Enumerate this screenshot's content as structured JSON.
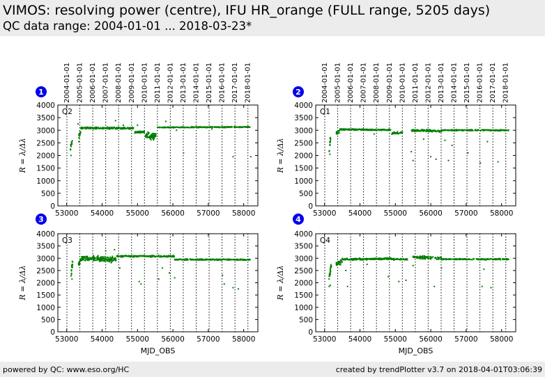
{
  "header": {
    "title": "VIMOS: resolving power (centre), IFU HR_orange (FULL range, 5205 days)",
    "subtitle": "QC data range: 2004-01-01 ... 2018-03-23*"
  },
  "footer": {
    "left": "powered by QC: www.eso.org/HC",
    "right": "created by trendPlotter v3.7 on 2018-04-01T03:06:39"
  },
  "colors": {
    "points": "#007f00",
    "badge": "#0000ee",
    "header_bg": "#ececec"
  },
  "chart_data": [
    {
      "type": "scatter",
      "badge": "1",
      "quadrant_label": "Q2",
      "xlabel": "",
      "ylabel": "R = λ/Δλ",
      "xlim": [
        52750,
        58400
      ],
      "ylim": [
        0,
        4000
      ],
      "x_ticks": [
        "53000",
        "54000",
        "55000",
        "56000",
        "57000",
        "58000"
      ],
      "y_ticks": [
        "0",
        "500",
        "1000",
        "1500",
        "2000",
        "2500",
        "3000",
        "3500",
        "4000"
      ],
      "date_ticks": [
        "2004-01-01",
        "2005-01-01",
        "2006-01-01",
        "2007-01-01",
        "2008-01-01",
        "2009-01-01",
        "2010-01-01",
        "2011-01-01",
        "2012-01-01",
        "2013-01-01",
        "2014-01-01",
        "2015-01-01",
        "2016-01-01",
        "2017-01-01",
        "2018-01-01"
      ],
      "date_mjd": [
        53005,
        53371,
        53736,
        54101,
        54466,
        54832,
        55197,
        55562,
        55927,
        56293,
        56658,
        57023,
        57388,
        57754,
        58119
      ],
      "segments": [
        {
          "x0": 53100,
          "x1": 53160,
          "y0": 2200,
          "y1": 2600,
          "spread": 200,
          "n": 12
        },
        {
          "x0": 53330,
          "x1": 53400,
          "y0": 2700,
          "y1": 2950,
          "spread": 150,
          "n": 14
        },
        {
          "x0": 53400,
          "x1": 54900,
          "y0": 3090,
          "y1": 3080,
          "spread": 50,
          "n": 220
        },
        {
          "x0": 54900,
          "x1": 55200,
          "y0": 2920,
          "y1": 2940,
          "spread": 60,
          "n": 40
        },
        {
          "x0": 55220,
          "x1": 55520,
          "y0": 2800,
          "y1": 2750,
          "spread": 180,
          "n": 80
        },
        {
          "x0": 55560,
          "x1": 58200,
          "y0": 3110,
          "y1": 3130,
          "spread": 25,
          "n": 260
        }
      ],
      "outliers": [
        [
          53320,
          3250
        ],
        [
          54380,
          3380
        ],
        [
          54600,
          3200
        ],
        [
          55000,
          3200
        ],
        [
          55800,
          3350
        ],
        [
          56300,
          2100
        ],
        [
          57700,
          1950
        ],
        [
          58200,
          1950
        ],
        [
          53120,
          2000
        ],
        [
          53340,
          2550
        ],
        [
          56100,
          3000
        ],
        [
          56700,
          3100
        ],
        [
          57100,
          3050
        ]
      ]
    },
    {
      "type": "scatter",
      "badge": "2",
      "quadrant_label": "Q1",
      "xlabel": "",
      "ylabel": "R = λ/Δλ",
      "xlim": [
        52750,
        58400
      ],
      "ylim": [
        0,
        4000
      ],
      "x_ticks": [
        "53000",
        "54000",
        "55000",
        "56000",
        "57000",
        "58000"
      ],
      "y_ticks": [
        "0",
        "500",
        "1000",
        "1500",
        "2000",
        "2500",
        "3000",
        "3500",
        "4000"
      ],
      "date_ticks": [
        "2004-01-01",
        "2005-01-01",
        "2006-01-01",
        "2007-01-01",
        "2008-01-01",
        "2009-01-01",
        "2010-01-01",
        "2011-01-01",
        "2012-01-01",
        "2013-01-01",
        "2014-01-01",
        "2015-01-01",
        "2016-01-01",
        "2017-01-01",
        "2018-01-01"
      ],
      "date_mjd": [
        53005,
        53371,
        53736,
        54101,
        54466,
        54832,
        55197,
        55562,
        55927,
        56293,
        56658,
        57023,
        57388,
        57754,
        58119
      ],
      "segments": [
        {
          "x0": 53130,
          "x1": 53170,
          "y0": 2200,
          "y1": 2700,
          "spread": 250,
          "n": 14
        },
        {
          "x0": 53330,
          "x1": 53430,
          "y0": 2850,
          "y1": 2950,
          "spread": 100,
          "n": 14
        },
        {
          "x0": 53430,
          "x1": 54900,
          "y0": 3030,
          "y1": 3010,
          "spread": 40,
          "n": 200
        },
        {
          "x0": 54900,
          "x1": 55200,
          "y0": 2880,
          "y1": 2900,
          "spread": 60,
          "n": 36
        },
        {
          "x0": 55450,
          "x1": 56300,
          "y0": 3000,
          "y1": 2960,
          "spread": 60,
          "n": 110
        },
        {
          "x0": 56300,
          "x1": 58200,
          "y0": 3000,
          "y1": 3000,
          "spread": 35,
          "n": 200
        }
      ],
      "outliers": [
        [
          55450,
          2150
        ],
        [
          55500,
          1800
        ],
        [
          56000,
          1950
        ],
        [
          56150,
          1850
        ],
        [
          56500,
          1800
        ],
        [
          56600,
          2400
        ],
        [
          57050,
          2100
        ],
        [
          57400,
          1700
        ],
        [
          57900,
          1750
        ],
        [
          53150,
          2050
        ],
        [
          54400,
          2850
        ],
        [
          55800,
          2650
        ],
        [
          56400,
          2600
        ],
        [
          57600,
          2550
        ]
      ]
    },
    {
      "type": "scatter",
      "badge": "3",
      "quadrant_label": "Q3",
      "xlabel": "MJD_OBS",
      "ylabel": "R = λ/Δλ",
      "xlim": [
        52750,
        58400
      ],
      "ylim": [
        0,
        4000
      ],
      "x_ticks": [
        "53000",
        "54000",
        "55000",
        "56000",
        "57000",
        "58000"
      ],
      "y_ticks": [
        "0",
        "500",
        "1000",
        "1500",
        "2000",
        "2500",
        "3000",
        "3500",
        "4000"
      ],
      "date_ticks": [
        "2004-01-01",
        "2005-01-01",
        "2006-01-01",
        "2007-01-01",
        "2008-01-01",
        "2009-01-01",
        "2010-01-01",
        "2011-01-01",
        "2012-01-01",
        "2013-01-01",
        "2014-01-01",
        "2015-01-01",
        "2016-01-01",
        "2017-01-01",
        "2018-01-01"
      ],
      "date_mjd": [
        53005,
        53371,
        53736,
        54101,
        54466,
        54832,
        55197,
        55562,
        55927,
        56293,
        56658,
        57023,
        57388,
        57754,
        58119
      ],
      "segments": [
        {
          "x0": 53120,
          "x1": 53170,
          "y0": 2300,
          "y1": 2900,
          "spread": 300,
          "n": 14
        },
        {
          "x0": 53330,
          "x1": 53420,
          "y0": 2750,
          "y1": 2950,
          "spread": 150,
          "n": 18
        },
        {
          "x0": 53420,
          "x1": 54400,
          "y0": 3000,
          "y1": 2950,
          "spread": 160,
          "n": 190
        },
        {
          "x0": 54400,
          "x1": 56050,
          "y0": 3080,
          "y1": 3080,
          "spread": 45,
          "n": 180
        },
        {
          "x0": 56050,
          "x1": 58200,
          "y0": 2950,
          "y1": 2940,
          "spread": 35,
          "n": 220
        }
      ],
      "outliers": [
        [
          53150,
          2150
        ],
        [
          54100,
          3300
        ],
        [
          54500,
          2600
        ],
        [
          55050,
          2050
        ],
        [
          55100,
          1950
        ],
        [
          55600,
          2150
        ],
        [
          55700,
          2600
        ],
        [
          55900,
          2400
        ],
        [
          56050,
          2200
        ],
        [
          57400,
          2300
        ],
        [
          57450,
          1950
        ],
        [
          57700,
          1800
        ],
        [
          57850,
          1750
        ],
        [
          54350,
          3350
        ]
      ]
    },
    {
      "type": "scatter",
      "badge": "4",
      "quadrant_label": "Q4",
      "xlabel": "MJD_OBS",
      "ylabel": "R = λ/Δλ",
      "xlim": [
        52750,
        58400
      ],
      "ylim": [
        0,
        4000
      ],
      "x_ticks": [
        "53000",
        "54000",
        "55000",
        "56000",
        "57000",
        "58000"
      ],
      "y_ticks": [
        "0",
        "500",
        "1000",
        "1500",
        "2000",
        "2500",
        "3000",
        "3500",
        "4000"
      ],
      "date_ticks": [
        "2004-01-01",
        "2005-01-01",
        "2006-01-01",
        "2007-01-01",
        "2008-01-01",
        "2009-01-01",
        "2010-01-01",
        "2011-01-01",
        "2012-01-01",
        "2013-01-01",
        "2014-01-01",
        "2015-01-01",
        "2016-01-01",
        "2017-01-01",
        "2018-01-01"
      ],
      "date_mjd": [
        53005,
        53371,
        53736,
        54101,
        54466,
        54832,
        55197,
        55562,
        55927,
        56293,
        56658,
        57023,
        57388,
        57754,
        58119
      ],
      "segments": [
        {
          "x0": 53120,
          "x1": 53200,
          "y0": 2100,
          "y1": 2800,
          "spread": 300,
          "n": 24
        },
        {
          "x0": 53330,
          "x1": 53500,
          "y0": 2700,
          "y1": 2900,
          "spread": 150,
          "n": 30
        },
        {
          "x0": 53500,
          "x1": 54900,
          "y0": 2950,
          "y1": 2980,
          "spread": 50,
          "n": 190
        },
        {
          "x0": 54900,
          "x1": 55350,
          "y0": 2960,
          "y1": 2960,
          "spread": 40,
          "n": 40
        },
        {
          "x0": 55500,
          "x1": 56300,
          "y0": 3050,
          "y1": 3000,
          "spread": 90,
          "n": 100
        },
        {
          "x0": 56300,
          "x1": 58200,
          "y0": 2960,
          "y1": 2960,
          "spread": 35,
          "n": 200
        }
      ],
      "outliers": [
        [
          53130,
          1850
        ],
        [
          53160,
          1900
        ],
        [
          53650,
          1850
        ],
        [
          54800,
          2250
        ],
        [
          55100,
          2050
        ],
        [
          55300,
          2100
        ],
        [
          55500,
          2700
        ],
        [
          56100,
          1850
        ],
        [
          56300,
          2600
        ],
        [
          57450,
          1850
        ],
        [
          57700,
          1800
        ],
        [
          57500,
          2550
        ],
        [
          53600,
          2500
        ],
        [
          54200,
          2750
        ]
      ]
    }
  ]
}
